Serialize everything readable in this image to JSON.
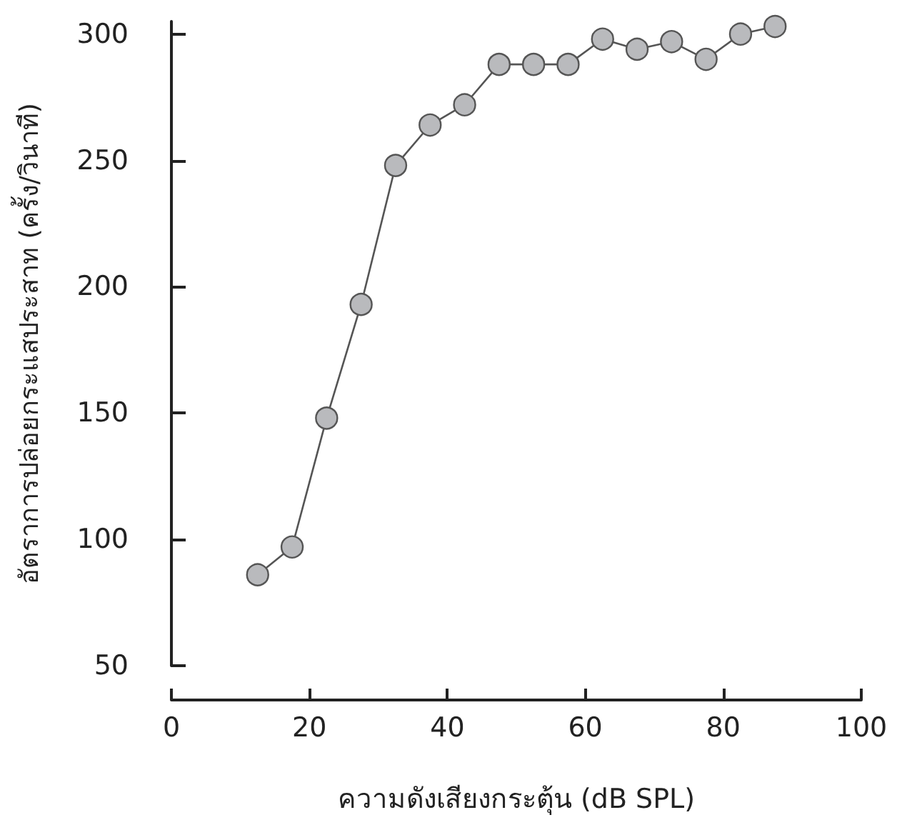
{
  "chart_data": {
    "type": "line",
    "xlabel": "ความดังเสียงกระตุ้น (dB SPL)",
    "ylabel": "อัตราการปล่อยกระแสประสาท (ครั้ง/วินาที)",
    "x": [
      12.5,
      17.5,
      22.5,
      27.5,
      32.5,
      37.5,
      42.5,
      47.5,
      52.5,
      57.5,
      62.5,
      67.5,
      72.5,
      77.5,
      82.5,
      87.5
    ],
    "series": [
      {
        "color": "#b9babd",
        "values": [
          86,
          97,
          148,
          193,
          248,
          264,
          272,
          288,
          288,
          288,
          298,
          294,
          297,
          290,
          300,
          303
        ]
      }
    ],
    "xlim": [
      0,
      100
    ],
    "xticks": [
      0,
      20,
      40,
      60,
      80,
      100
    ],
    "ylim": [
      50,
      305
    ],
    "yticks": [
      50,
      100,
      150,
      200,
      250,
      300
    ],
    "grid": false,
    "marker": "circle",
    "line_style": "solid"
  }
}
